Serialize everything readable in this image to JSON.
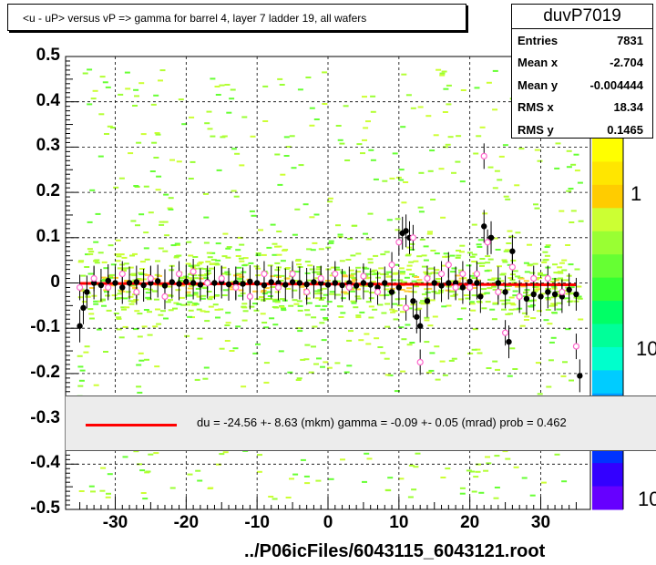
{
  "title": "<u - uP>       versus   vP =>  gamma for barrel 4, layer 7 ladder 19, all wafers",
  "file_label": "../P06icFiles/6043115_6043121.root",
  "stats": {
    "name": "duvP7019",
    "rows": [
      {
        "key": "Entries",
        "value": "7831"
      },
      {
        "key": "Mean x",
        "value": "-2.704"
      },
      {
        "key": "Mean y",
        "value": "-0.004444"
      },
      {
        "key": "RMS x",
        "value": "18.34"
      },
      {
        "key": "RMS y",
        "value": "0.1465"
      }
    ]
  },
  "fit_text": "du =  -24.56 +-  8.63 (mkm) gamma =   -0.09 +-  0.05 (mrad) prob = 0.462",
  "colors": {
    "fit_line": "#ff0000",
    "profile_black": "#000000",
    "profile_open": "#ff66cc"
  },
  "chart_data": {
    "type": "scatter",
    "xlim": [
      -37,
      37
    ],
    "ylim": [
      -0.5,
      0.5
    ],
    "x_ticks": [
      "-30",
      "-20",
      "-10",
      "0",
      "10",
      "20",
      "30"
    ],
    "y_ticks": [
      "0.5",
      "0.4",
      "0.3",
      "0.2",
      "0.1",
      "0",
      "-0.1",
      "-0.2",
      "-0.3",
      "-0.4",
      "-0.5"
    ],
    "z_labels": [
      "1",
      "10",
      "10"
    ],
    "grid": true,
    "fit_line": {
      "y_at_xmin": -0.001,
      "y_at_xmax": -0.004
    },
    "profile_black": [
      [
        -35,
        -0.095
      ],
      [
        -34.5,
        -0.055
      ],
      [
        -34,
        -0.02
      ],
      [
        -33,
        0.0
      ],
      [
        -32,
        -0.005
      ],
      [
        -31,
        0.005
      ],
      [
        -30,
        0.0
      ],
      [
        -29,
        -0.01
      ],
      [
        -28,
        0.0
      ],
      [
        -27,
        0.002
      ],
      [
        -26,
        -0.005
      ],
      [
        -25,
        0.0
      ],
      [
        -24,
        0.004
      ],
      [
        -23,
        -0.006
      ],
      [
        -22,
        0.002
      ],
      [
        -21,
        -0.002
      ],
      [
        -20,
        0.003
      ],
      [
        -19,
        0.0
      ],
      [
        -18,
        -0.004
      ],
      [
        -17,
        0.002
      ],
      [
        -16,
        0.0
      ],
      [
        -15,
        0.002
      ],
      [
        -14,
        -0.003
      ],
      [
        -13,
        0.0
      ],
      [
        -12,
        -0.002
      ],
      [
        -11,
        0.003
      ],
      [
        -10,
        0.0
      ],
      [
        -9,
        -0.005
      ],
      [
        -8,
        0.002
      ],
      [
        -7,
        0.0
      ],
      [
        -6,
        -0.004
      ],
      [
        -5,
        0.002
      ],
      [
        -4,
        0.0
      ],
      [
        -3,
        -0.003
      ],
      [
        -2,
        0.002
      ],
      [
        -1,
        0.0
      ],
      [
        0,
        -0.004
      ],
      [
        1,
        0.0
      ],
      [
        2,
        -0.005
      ],
      [
        3,
        0.0
      ],
      [
        4,
        -0.006
      ],
      [
        5,
        0.0
      ],
      [
        6,
        -0.004
      ],
      [
        7,
        -0.01
      ],
      [
        8,
        0.0
      ],
      [
        9,
        -0.02
      ],
      [
        10,
        -0.01
      ],
      [
        10.5,
        0.11
      ],
      [
        11,
        0.115
      ],
      [
        11.5,
        0.1
      ],
      [
        12,
        -0.04
      ],
      [
        12.5,
        -0.075
      ],
      [
        13,
        -0.095
      ],
      [
        14,
        -0.04
      ],
      [
        15,
        0.0
      ],
      [
        16,
        -0.006
      ],
      [
        17,
        0.0
      ],
      [
        18,
        0.0
      ],
      [
        19,
        -0.01
      ],
      [
        20,
        0.003
      ],
      [
        21,
        0.0
      ],
      [
        21.5,
        -0.03
      ],
      [
        22,
        0.125
      ],
      [
        23,
        0.1
      ],
      [
        24,
        0.0
      ],
      [
        25,
        -0.02
      ],
      [
        25.5,
        -0.13
      ],
      [
        26,
        0.07
      ],
      [
        27,
        -0.03
      ],
      [
        28,
        -0.035
      ],
      [
        29,
        -0.025
      ],
      [
        30,
        -0.03
      ],
      [
        31,
        -0.02
      ],
      [
        32,
        -0.025
      ],
      [
        33,
        -0.03
      ],
      [
        34,
        -0.015
      ],
      [
        35,
        -0.025
      ],
      [
        35.5,
        -0.205
      ]
    ],
    "profile_open": [
      [
        -35,
        -0.01
      ],
      [
        -33,
        0.01
      ],
      [
        -31,
        -0.01
      ],
      [
        -29,
        0.02
      ],
      [
        -27,
        -0.02
      ],
      [
        -25,
        0.01
      ],
      [
        -23,
        -0.03
      ],
      [
        -21,
        0.02
      ],
      [
        -19,
        0.025
      ],
      [
        -17,
        0.0
      ],
      [
        -15,
        0.01
      ],
      [
        -13,
        -0.01
      ],
      [
        -11,
        -0.03
      ],
      [
        -9,
        0.02
      ],
      [
        -7,
        -0.01
      ],
      [
        -5,
        0.02
      ],
      [
        -3,
        -0.02
      ],
      [
        -1,
        0.01
      ],
      [
        1,
        0.02
      ],
      [
        3,
        -0.01
      ],
      [
        5,
        0.015
      ],
      [
        7,
        -0.02
      ],
      [
        9,
        0.04
      ],
      [
        10,
        0.09
      ],
      [
        11,
        -0.055
      ],
      [
        12,
        0.1
      ],
      [
        13,
        -0.175
      ],
      [
        14,
        0.01
      ],
      [
        16,
        0.02
      ],
      [
        17,
        0.04
      ],
      [
        18,
        -0.01
      ],
      [
        19,
        0.02
      ],
      [
        20,
        -0.01
      ],
      [
        21,
        0.02
      ],
      [
        22,
        0.28
      ],
      [
        22.5,
        0.09
      ],
      [
        24,
        -0.02
      ],
      [
        25,
        -0.11
      ],
      [
        26,
        0.035
      ],
      [
        27,
        -0.03
      ],
      [
        29,
        0.01
      ],
      [
        31,
        0.01
      ],
      [
        33,
        -0.02
      ],
      [
        35,
        -0.14
      ]
    ]
  }
}
